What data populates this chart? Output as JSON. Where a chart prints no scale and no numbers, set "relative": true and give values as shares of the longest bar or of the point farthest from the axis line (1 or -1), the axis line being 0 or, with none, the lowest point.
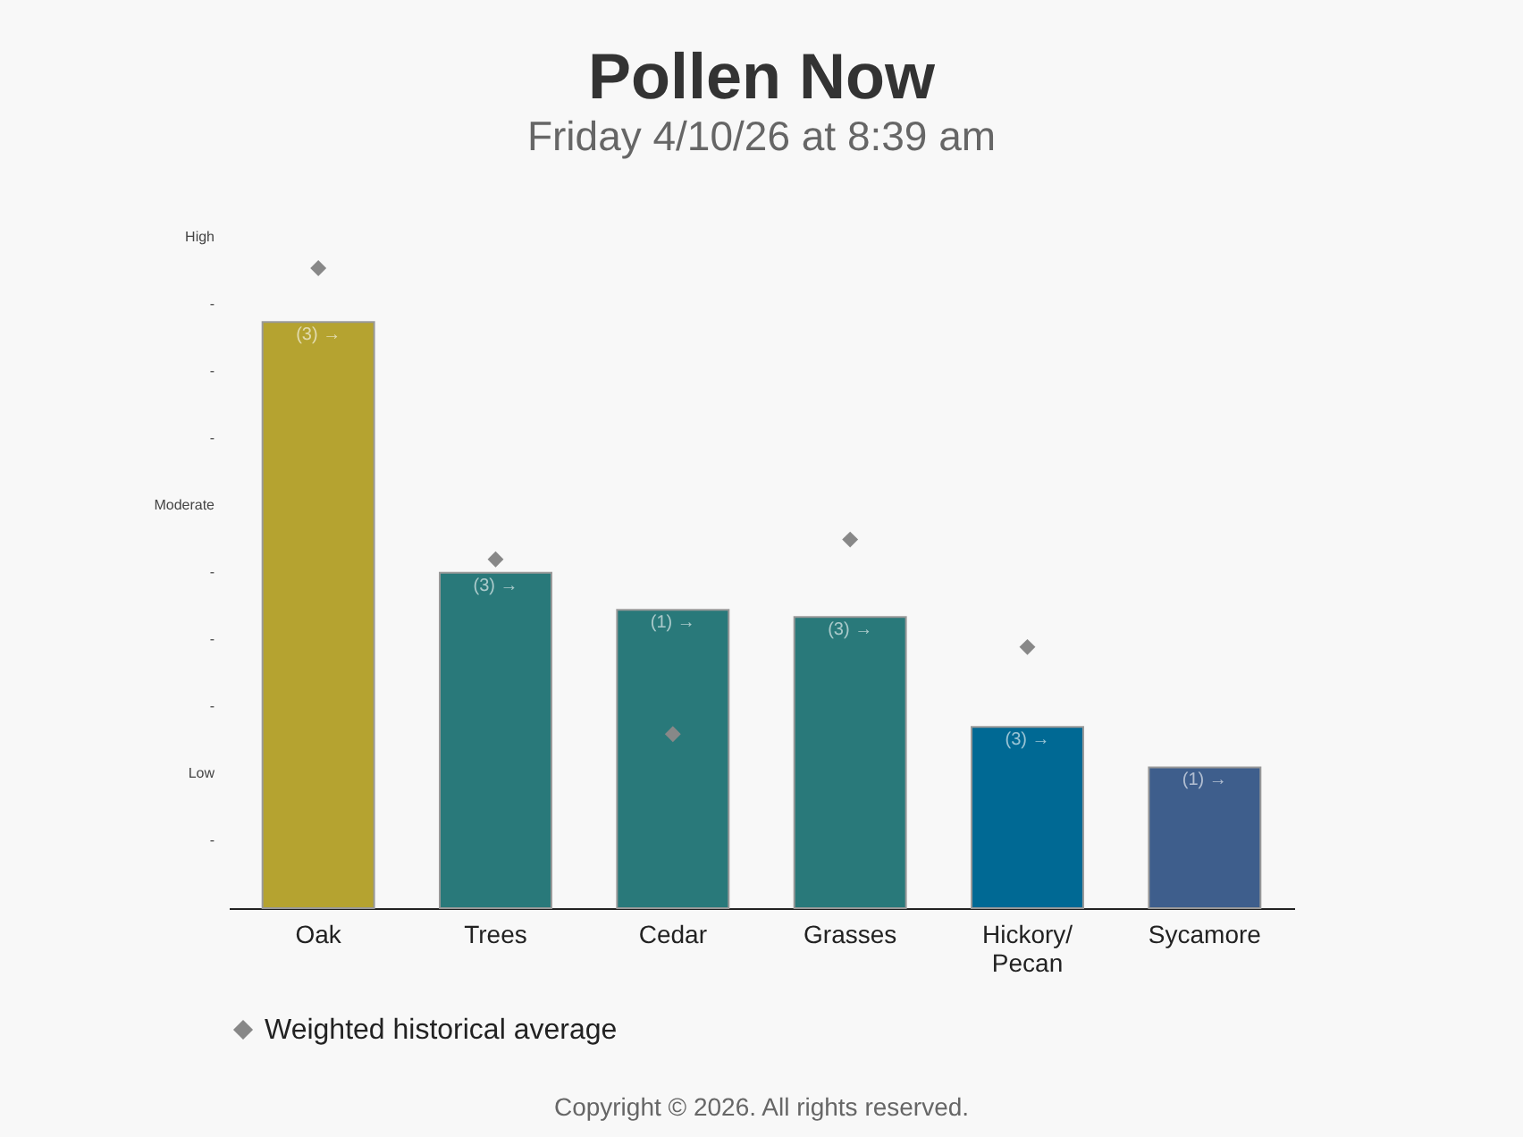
{
  "chart_data": {
    "type": "bar",
    "title": "Pollen Now",
    "subtitle": "Friday 4/10/26 at 8:39 am",
    "relative": true,
    "categories": [
      "Oak",
      "Trees",
      "Cedar",
      "Grasses",
      "Hickory/\nPecan",
      "Sycamore"
    ],
    "series": [
      {
        "colors": [
          "#b5a330",
          "#29797a",
          "#29797a",
          "#29797a",
          "#006994",
          "#3e5e8c"
        ],
        "values": [
          0.916,
          0.524,
          0.466,
          0.455,
          0.283,
          0.22
        ]
      },
      {
        "type": "scatter",
        "name": "Weighted historical average",
        "color": "#888888",
        "marker": "diamond",
        "values": [
          1.0,
          0.545,
          0.272,
          0.576,
          0.408,
          null
        ]
      }
    ],
    "grid": false,
    "legend": "bottom",
    "annotations": [
      {
        "text": "(3) →",
        "x": "Oak",
        "y": 0.916
      },
      {
        "text": "(3) →",
        "x": "Trees",
        "y": 0.524
      },
      {
        "text": "(1) →",
        "x": "Cedar",
        "y": 0.466
      },
      {
        "text": "(3) →",
        "x": "Grasses",
        "y": 0.455
      },
      {
        "text": "(3) →",
        "x": "Hickory/\nPecan",
        "y": 0.283
      },
      {
        "text": "(1) →",
        "x": "Sycamore",
        "y": 0.22
      },
      "-",
      "Low",
      "-",
      "-",
      "-",
      "Moderate",
      "-",
      "-",
      "-",
      "High",
      "Copyright © 2026. All rights reserved."
    ]
  }
}
